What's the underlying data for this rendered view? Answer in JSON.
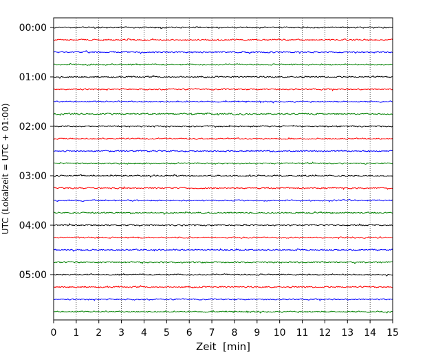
{
  "chart_data": {
    "type": "line",
    "chart_kind": "seismogram-helicorder",
    "xlabel": "Zeit  [min]",
    "ylabel": "UTC (Lokalzeit = UTC + 01:00)",
    "x_ticks": [
      0,
      1,
      2,
      3,
      4,
      5,
      6,
      7,
      8,
      9,
      10,
      11,
      12,
      13,
      14,
      15
    ],
    "xlim": [
      0,
      15
    ],
    "y_tick_labels": [
      "00:00",
      "01:00",
      "02:00",
      "03:00",
      "04:00",
      "05:00"
    ],
    "grid": "vertical dotted lines at each minute",
    "trace_interval_minutes": 15,
    "trace_colors": [
      "#000000",
      "#ff0000",
      "#0000ff",
      "#008000"
    ],
    "traces": [
      {
        "start": "00:00",
        "color": "#000000"
      },
      {
        "start": "00:15",
        "color": "#ff0000"
      },
      {
        "start": "00:30",
        "color": "#0000ff"
      },
      {
        "start": "00:45",
        "color": "#008000"
      },
      {
        "start": "01:00",
        "color": "#000000"
      },
      {
        "start": "01:15",
        "color": "#ff0000"
      },
      {
        "start": "01:30",
        "color": "#0000ff"
      },
      {
        "start": "01:45",
        "color": "#008000"
      },
      {
        "start": "02:00",
        "color": "#000000"
      },
      {
        "start": "02:15",
        "color": "#ff0000"
      },
      {
        "start": "02:30",
        "color": "#0000ff"
      },
      {
        "start": "02:45",
        "color": "#008000"
      },
      {
        "start": "03:00",
        "color": "#000000"
      },
      {
        "start": "03:15",
        "color": "#ff0000"
      },
      {
        "start": "03:30",
        "color": "#0000ff"
      },
      {
        "start": "03:45",
        "color": "#008000"
      },
      {
        "start": "04:00",
        "color": "#000000"
      },
      {
        "start": "04:15",
        "color": "#ff0000"
      },
      {
        "start": "04:30",
        "color": "#0000ff"
      },
      {
        "start": "04:45",
        "color": "#008000"
      },
      {
        "start": "05:00",
        "color": "#000000"
      },
      {
        "start": "05:15",
        "color": "#ff0000"
      },
      {
        "start": "05:30",
        "color": "#0000ff"
      },
      {
        "start": "05:45",
        "color": "#008000"
      }
    ]
  }
}
